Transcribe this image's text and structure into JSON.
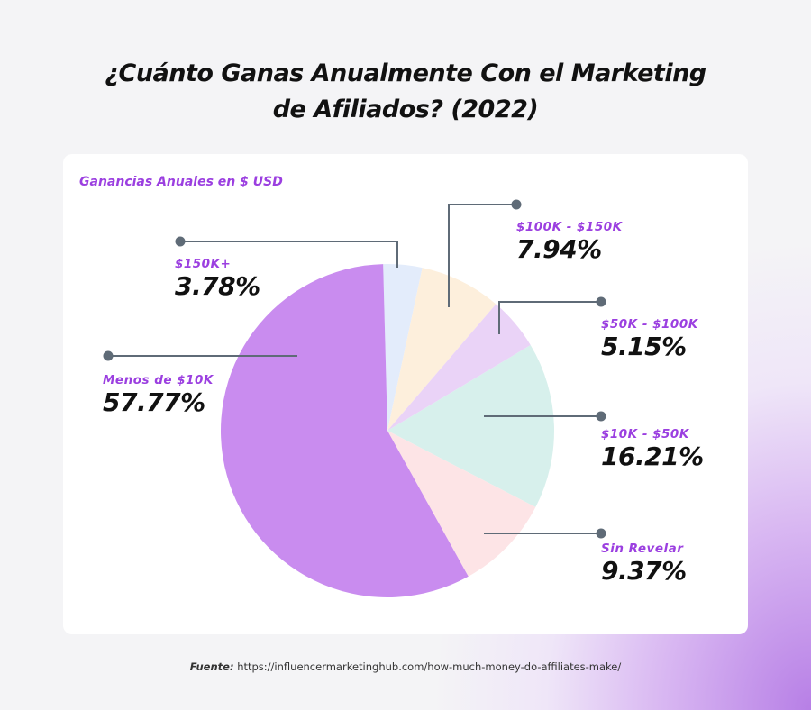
{
  "title_line1": "¿Cuánto Ganas Anualmente Con el Marketing",
  "title_line2": "de Afiliados? (2022)",
  "source_label": "Fuente:",
  "source_url": "https://influencermarketinghub.com/how-much-money-do-affiliates-make/",
  "chart_data": {
    "type": "pie",
    "title": "¿Cuánto Ganas Anualmente Con el Marketing de Afiliados? (2022)",
    "subtitle": "Ganancias Anuales en $ USD",
    "categories": [
      "$150K+",
      "$100K - $150K",
      "$50K - $100K",
      "$10K - $50K",
      "Sin Revelar",
      "Menos de $10K"
    ],
    "values": [
      3.78,
      7.94,
      5.15,
      16.21,
      9.37,
      57.77
    ],
    "labels": [
      "3.78%",
      "7.94%",
      "5.15%",
      "16.21%",
      "9.37%",
      "57.77%"
    ],
    "colors": [
      "#e3ecfb",
      "#fdefdc",
      "#ead3f7",
      "#d7f0ec",
      "#fde4e6",
      "#c98cef"
    ],
    "legend": "callout labels"
  },
  "accent_color": "#9b3fe0"
}
